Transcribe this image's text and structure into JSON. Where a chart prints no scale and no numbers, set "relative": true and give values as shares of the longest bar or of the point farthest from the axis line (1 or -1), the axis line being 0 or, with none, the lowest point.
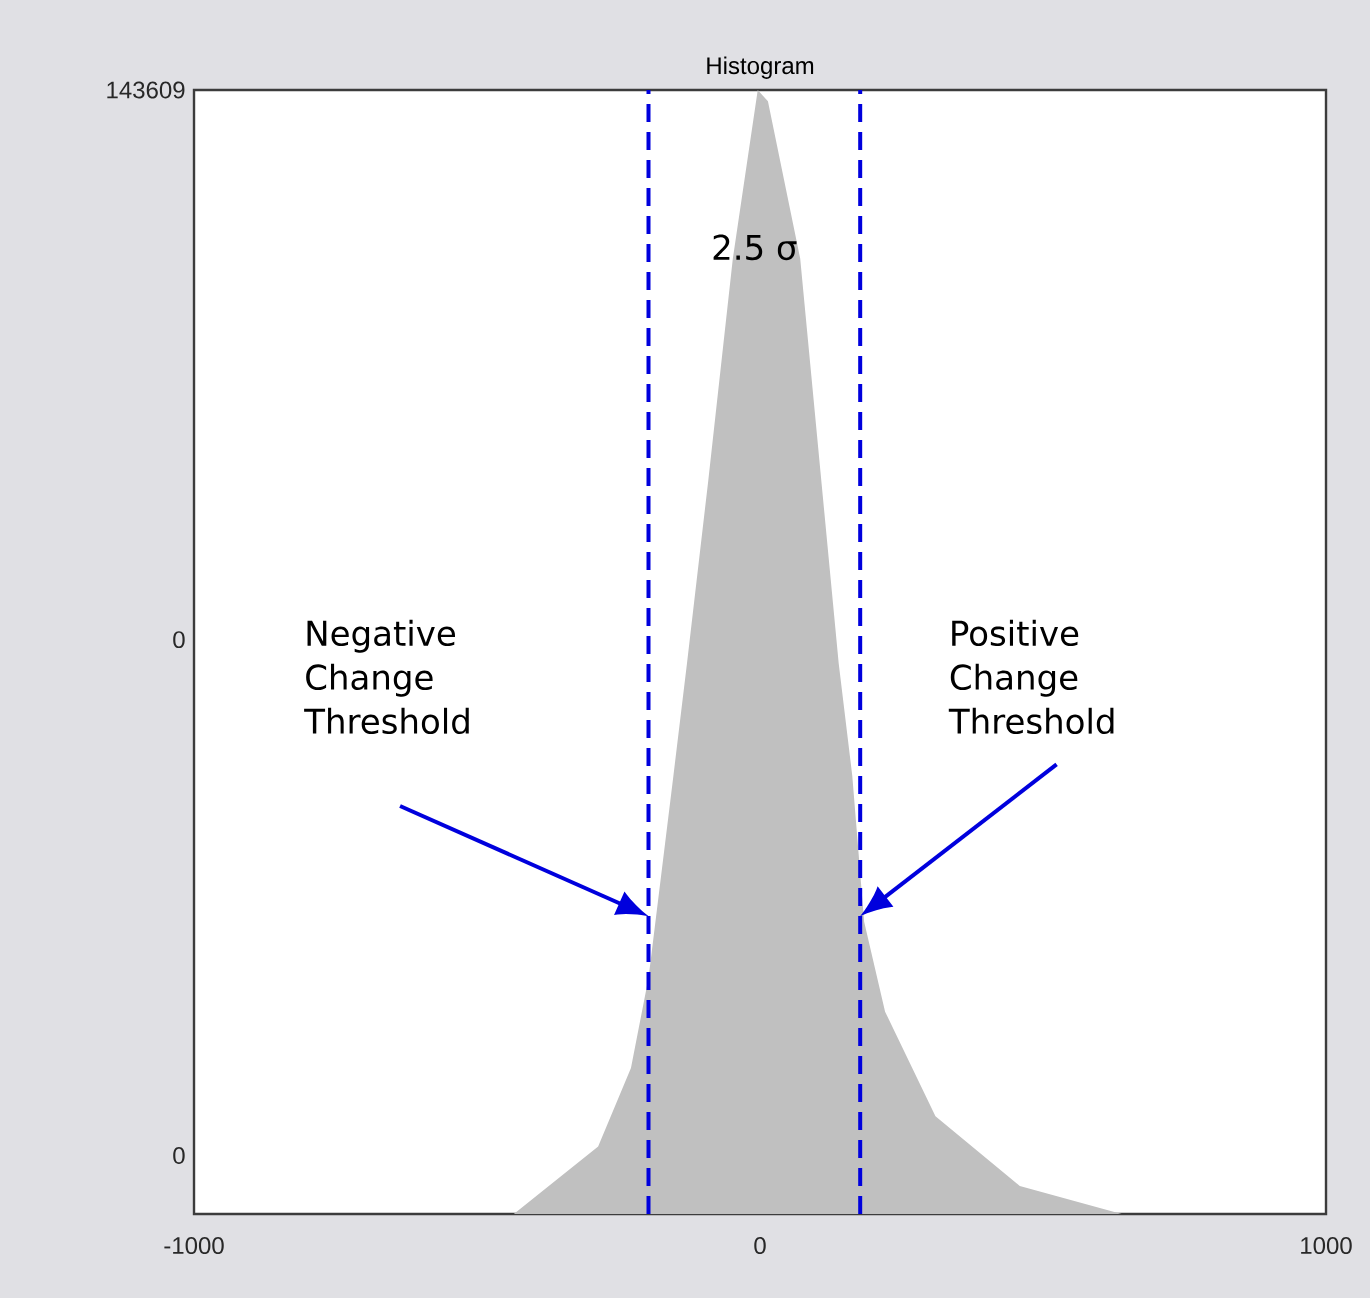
{
  "chart_data": {
    "type": "area",
    "title": "Histogram",
    "relative": true,
    "x": [
      -1000,
      -435,
      -286,
      -228,
      -197,
      -153,
      -129,
      -92,
      -48,
      -4,
      14,
      71,
      122,
      139,
      163,
      184,
      221,
      310,
      459,
      639,
      1000
    ],
    "values": [
      0,
      0,
      0.06,
      0.13,
      0.21,
      0.39,
      0.49,
      0.65,
      0.85,
      1,
      0.99,
      0.85,
      0.58,
      0.49,
      0.39,
      0.26,
      0.18,
      0.087,
      0.025,
      0,
      0
    ],
    "color": "#c0c0c0",
    "xlim": [
      -1000,
      1000
    ],
    "xticks": [
      -1000,
      0,
      1000
    ],
    "ref_lines": [
      {
        "axis": "x",
        "value": -197,
        "color": "#0000dd",
        "line_style": "dashed"
      },
      {
        "axis": "x",
        "value": 177,
        "color": "#0000dd",
        "line_style": "dashed"
      }
    ],
    "annotations": [
      "143609",
      "0",
      "0",
      "2.5 σ",
      "Negative Change Threshold",
      "Positive Change Threshold"
    ]
  }
}
